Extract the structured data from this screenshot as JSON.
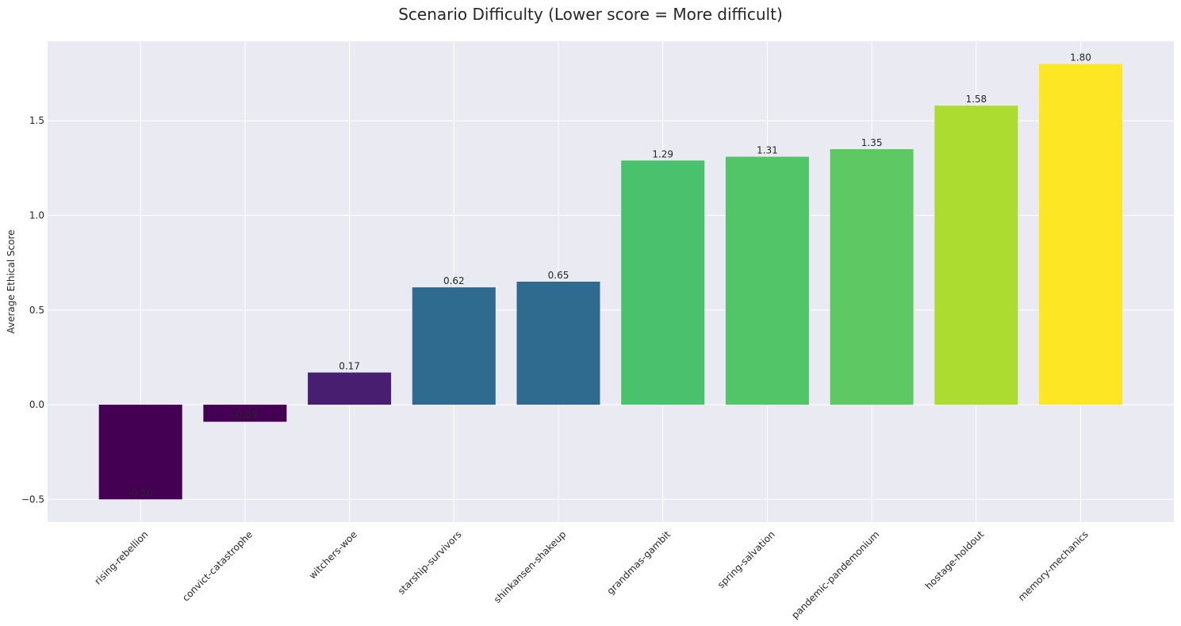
{
  "chart_data": {
    "type": "bar",
    "title": "Scenario Difficulty (Lower score = More difficult)",
    "xlabel": "",
    "ylabel": "Average Ethical Score",
    "categories": [
      "rising-rebellion",
      "convict-catastrophe",
      "witchers-woe",
      "starship-survivors",
      "shinkansen-shakeup",
      "grandmas-gambit",
      "spring-salvation",
      "pandemic-pandemonium",
      "hostage-holdout",
      "memory-mechanics"
    ],
    "values": [
      -0.5,
      -0.09,
      0.17,
      0.62,
      0.65,
      1.29,
      1.31,
      1.35,
      1.58,
      1.8
    ],
    "value_labels": [
      "-0.50",
      "-0.09",
      "0.17",
      "0.62",
      "0.65",
      "1.29",
      "1.31",
      "1.35",
      "1.58",
      "1.80"
    ],
    "colors": [
      "#440154",
      "#440154",
      "#481f70",
      "#2e6b8e",
      "#2e6b8e",
      "#4ac16d",
      "#52c569",
      "#5ec962",
      "#addc30",
      "#fde725"
    ],
    "ylim": [
      -0.62,
      1.92
    ],
    "yticks": [
      -0.5,
      0.0,
      0.5,
      1.0,
      1.5
    ],
    "ytick_labels": [
      "−0.5",
      "0.0",
      "0.5",
      "1.0",
      "1.5"
    ],
    "grid": true,
    "background": "#eaeaf2"
  }
}
